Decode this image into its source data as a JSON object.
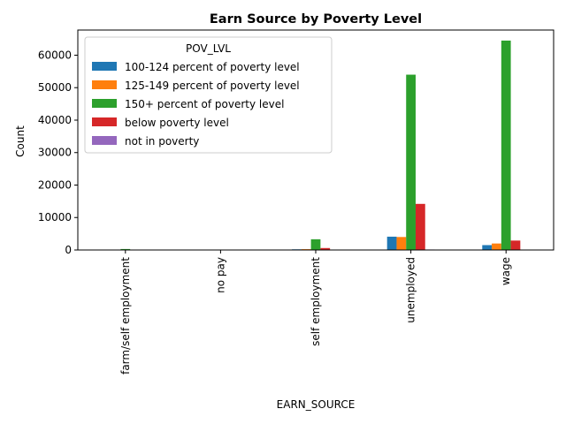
{
  "chart_data": {
    "type": "bar",
    "title": "Earn Source by Poverty Level",
    "xlabel": "EARN_SOURCE",
    "ylabel": "Count",
    "categories": [
      "farm/self employment",
      "no pay",
      "self employment",
      "unemployed",
      "wage"
    ],
    "series": [
      {
        "name": "100-124 percent of poverty level",
        "color": "#1f77b4",
        "values": [
          20,
          0,
          200,
          4100,
          1500
        ]
      },
      {
        "name": "125-149 percent of poverty level",
        "color": "#ff7f0e",
        "values": [
          20,
          0,
          250,
          4000,
          2000
        ]
      },
      {
        "name": "150+ percent of poverty level",
        "color": "#2ca02c",
        "values": [
          300,
          10,
          3300,
          54000,
          64500
        ]
      },
      {
        "name": "below poverty level",
        "color": "#d62728",
        "values": [
          30,
          0,
          600,
          14200,
          2900
        ]
      },
      {
        "name": "not in poverty",
        "color": "#9467bd",
        "values": [
          0,
          0,
          0,
          150,
          0
        ]
      }
    ],
    "ylim": [
      0,
      67750
    ],
    "yticks": [
      0,
      10000,
      20000,
      30000,
      40000,
      50000,
      60000
    ],
    "legend": {
      "title": "POV_LVL",
      "placement": "top-left"
    },
    "grid": false
  }
}
